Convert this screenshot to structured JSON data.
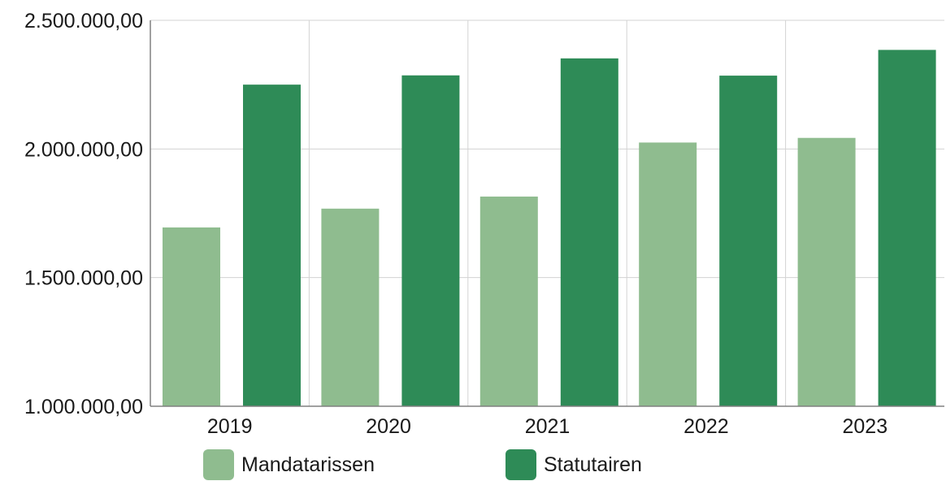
{
  "chart_data": {
    "type": "bar",
    "categories": [
      "2019",
      "2020",
      "2021",
      "2022",
      "2023"
    ],
    "series": [
      {
        "name": "Mandatarissen",
        "color": "#8fbc8f",
        "values": [
          1695000,
          1768000,
          1815000,
          2025000,
          2043000
        ]
      },
      {
        "name": "Statutairen",
        "color": "#2e8b57",
        "values": [
          2250000,
          2286000,
          2352000,
          2285000,
          2385000
        ]
      }
    ],
    "y_ticks": [
      {
        "value": 1000000,
        "label": "1.000.000,00"
      },
      {
        "value": 1500000,
        "label": "1.500.000,00"
      },
      {
        "value": 2000000,
        "label": "2.000.000,00"
      },
      {
        "value": 2500000,
        "label": "2.500.000,00"
      }
    ],
    "ylim": [
      1000000,
      2500000
    ],
    "title": "",
    "xlabel": "",
    "ylabel": "",
    "grid": true,
    "legend_position": "bottom"
  },
  "colors": {
    "grid": "#d3d3d3",
    "axis": "#808080"
  }
}
